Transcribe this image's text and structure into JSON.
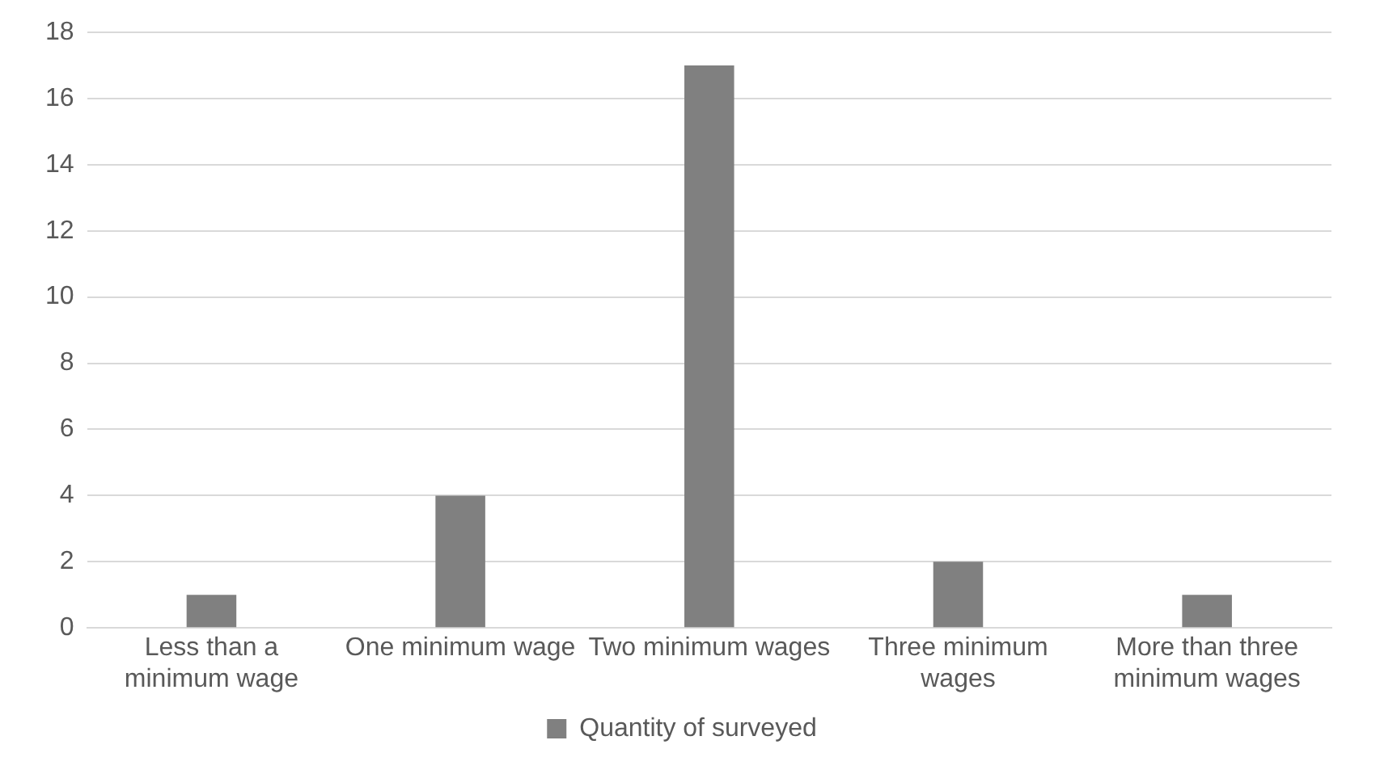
{
  "chart_data": {
    "type": "bar",
    "categories": [
      "Less than a minimum wage",
      "One minimum wage",
      "Two minimum wages",
      "Three minimum wages",
      "More than three minimum wages"
    ],
    "series": [
      {
        "name": "Quantity of surveyed",
        "color": "#808080",
        "values": [
          1,
          4,
          17,
          2,
          1
        ]
      }
    ],
    "ylim": [
      0,
      18
    ],
    "yticks": [
      0,
      2,
      4,
      6,
      8,
      10,
      12,
      14,
      16,
      18
    ],
    "grid": "y",
    "legend": "bottom"
  }
}
